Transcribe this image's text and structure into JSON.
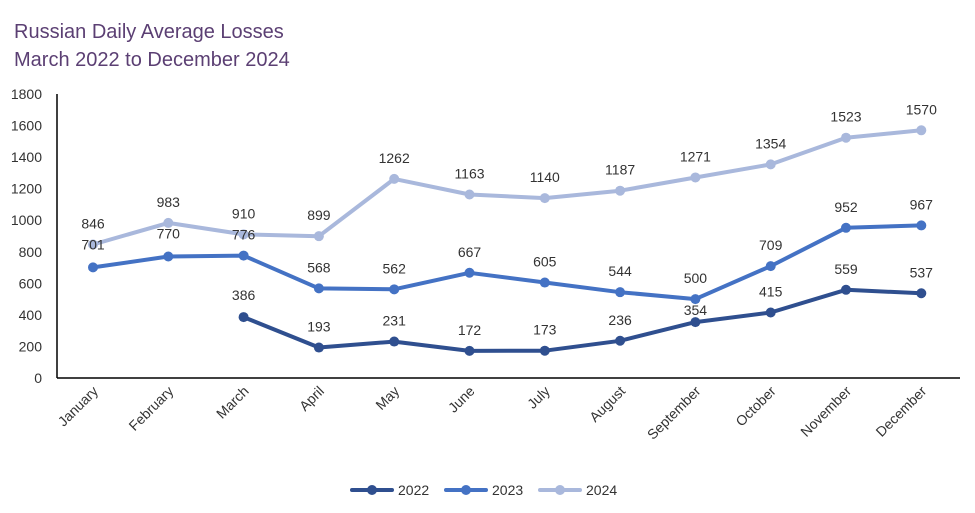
{
  "chart_data": {
    "type": "line",
    "title": "Russian Daily Average Losses",
    "subtitle": "March 2022 to December 2024",
    "categories": [
      "January",
      "February",
      "March",
      "April",
      "May",
      "June",
      "July",
      "August",
      "September",
      "October",
      "November",
      "December"
    ],
    "ylim": [
      0,
      1800
    ],
    "yticks": [
      0,
      200,
      400,
      600,
      800,
      1000,
      1200,
      1400,
      1600,
      1800
    ],
    "grid": false,
    "legend_position": "bottom",
    "series": [
      {
        "name": "2022",
        "color": "#2f4f8f",
        "values": [
          null,
          null,
          386,
          193,
          231,
          172,
          173,
          236,
          354,
          415,
          559,
          537
        ]
      },
      {
        "name": "2023",
        "color": "#4472c4",
        "values": [
          701,
          770,
          776,
          568,
          562,
          667,
          605,
          544,
          500,
          709,
          952,
          967
        ]
      },
      {
        "name": "2024",
        "color": "#a9b8dc",
        "values": [
          846,
          983,
          910,
          899,
          1262,
          1163,
          1140,
          1187,
          1271,
          1354,
          1523,
          1570
        ]
      }
    ]
  }
}
